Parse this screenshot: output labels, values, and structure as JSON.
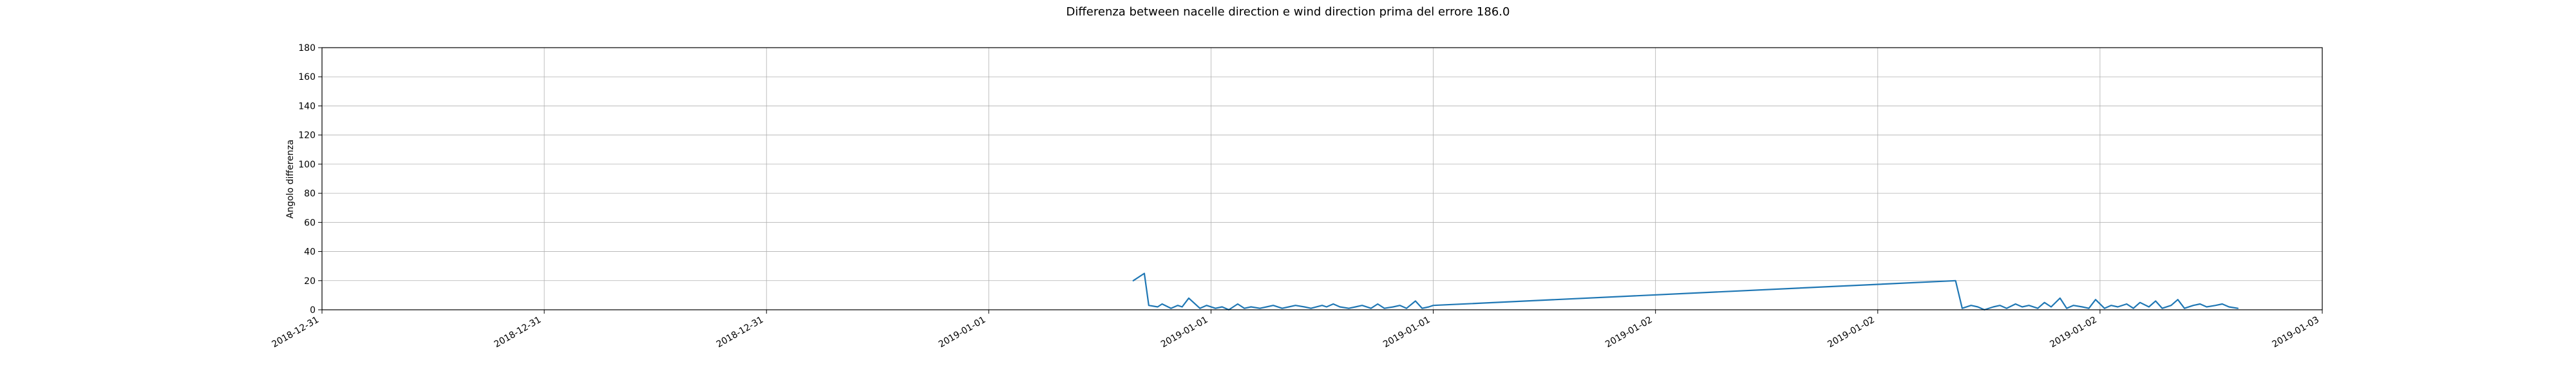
{
  "chart_data": {
    "type": "line",
    "title": "Differenza between nacelle direction e wind direction prima del errore 186.0",
    "xlabel": "",
    "ylabel": "Angolo differenza",
    "ylim": [
      0,
      180
    ],
    "xlim": [
      0,
      9
    ],
    "grid": true,
    "yticks": [
      0,
      20,
      40,
      60,
      80,
      100,
      120,
      140,
      160,
      180
    ],
    "xtick_values": [
      0,
      1,
      2,
      3,
      4,
      5,
      6,
      7,
      8,
      9
    ],
    "xtick_labels": [
      "2018-12-31",
      "2018-12-31",
      "2018-12-31",
      "2019-01-01",
      "2019-01-01",
      "2019-01-01",
      "2019-01-02",
      "2019-01-02",
      "2019-01-02",
      "2019-01-03"
    ],
    "line_color": "#1f77b4",
    "series": [
      {
        "x": [
          3.65,
          3.7,
          3.72,
          3.76,
          3.78,
          3.82,
          3.85,
          3.87,
          3.9,
          3.95,
          3.98,
          4.02,
          4.05,
          4.08,
          4.12,
          4.15,
          4.18,
          4.22,
          4.25,
          4.28,
          4.32,
          4.35,
          4.38,
          4.42,
          4.45,
          4.5,
          4.52,
          4.55,
          4.58,
          4.62,
          4.65,
          4.68,
          4.72,
          4.75,
          4.78,
          4.82,
          4.85,
          4.88,
          4.92,
          4.95,
          4.98,
          5.0,
          7.35,
          7.38,
          7.42,
          7.45,
          7.48,
          7.52,
          7.55,
          7.58,
          7.62,
          7.65,
          7.68,
          7.72,
          7.75,
          7.78,
          7.82,
          7.85,
          7.88,
          7.92,
          7.95,
          7.98,
          8.02,
          8.05,
          8.08,
          8.12,
          8.15,
          8.18,
          8.22,
          8.25,
          8.28,
          8.32,
          8.35,
          8.38,
          8.42,
          8.45,
          8.48,
          8.52,
          8.55,
          8.58,
          8.62
        ],
        "y": [
          20,
          25,
          3,
          2,
          4,
          1,
          3,
          2,
          8,
          1,
          3,
          1,
          2,
          0,
          4,
          1,
          2,
          1,
          2,
          3,
          1,
          2,
          3,
          2,
          1,
          3,
          2,
          4,
          2,
          1,
          2,
          3,
          1,
          4,
          1,
          2,
          3,
          1,
          6,
          1,
          2,
          3,
          20,
          1,
          3,
          2,
          0,
          2,
          3,
          1,
          4,
          2,
          3,
          1,
          5,
          2,
          8,
          1,
          3,
          2,
          1,
          7,
          1,
          3,
          2,
          4,
          1,
          5,
          2,
          6,
          1,
          3,
          7,
          1,
          3,
          4,
          2,
          3,
          4,
          2,
          1
        ]
      }
    ]
  }
}
